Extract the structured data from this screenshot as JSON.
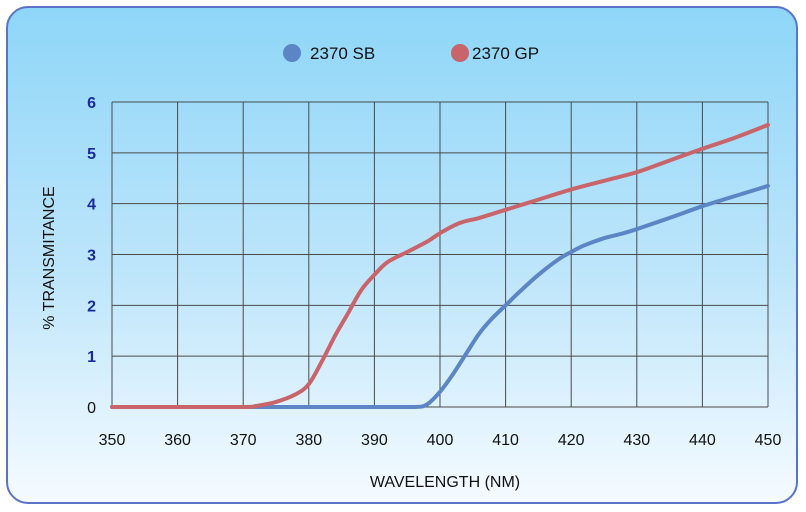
{
  "chart_data": {
    "type": "line",
    "xlabel": "WAVELENGTH (NM)",
    "ylabel": "% TRANSMITANCE",
    "xlim": [
      350,
      450
    ],
    "ylim": [
      0,
      6
    ],
    "x_ticks": [
      350,
      360,
      370,
      380,
      390,
      400,
      410,
      420,
      430,
      440,
      450
    ],
    "y_ticks": [
      0,
      1,
      2,
      3,
      4,
      5,
      6
    ],
    "grid": true,
    "legend_position": "top-center",
    "series": [
      {
        "name": "2370 SB",
        "color": "#5b85c4",
        "x": [
          350,
          360,
          370,
          380,
          390,
          396,
          398,
          400,
          402,
          404,
          406,
          408,
          410,
          412,
          415,
          418,
          420,
          422,
          425,
          428,
          430,
          435,
          440,
          445,
          450
        ],
        "y": [
          0,
          0,
          0,
          0,
          0,
          0,
          0.05,
          0.3,
          0.65,
          1.05,
          1.45,
          1.75,
          2.0,
          2.25,
          2.6,
          2.9,
          3.05,
          3.18,
          3.32,
          3.42,
          3.5,
          3.72,
          3.95,
          4.15,
          4.35
        ]
      },
      {
        "name": "2370 GP",
        "color": "#c9646a",
        "x": [
          350,
          360,
          370,
          372,
          375,
          378,
          380,
          382,
          384,
          386,
          388,
          390,
          392,
          395,
          398,
          400,
          403,
          406,
          410,
          415,
          420,
          425,
          430,
          435,
          440,
          445,
          450
        ],
        "y": [
          0,
          0,
          0,
          0.02,
          0.1,
          0.25,
          0.45,
          0.9,
          1.4,
          1.85,
          2.3,
          2.6,
          2.85,
          3.05,
          3.25,
          3.42,
          3.62,
          3.72,
          3.88,
          4.08,
          4.28,
          4.45,
          4.62,
          4.85,
          5.08,
          5.3,
          5.55
        ]
      }
    ]
  }
}
